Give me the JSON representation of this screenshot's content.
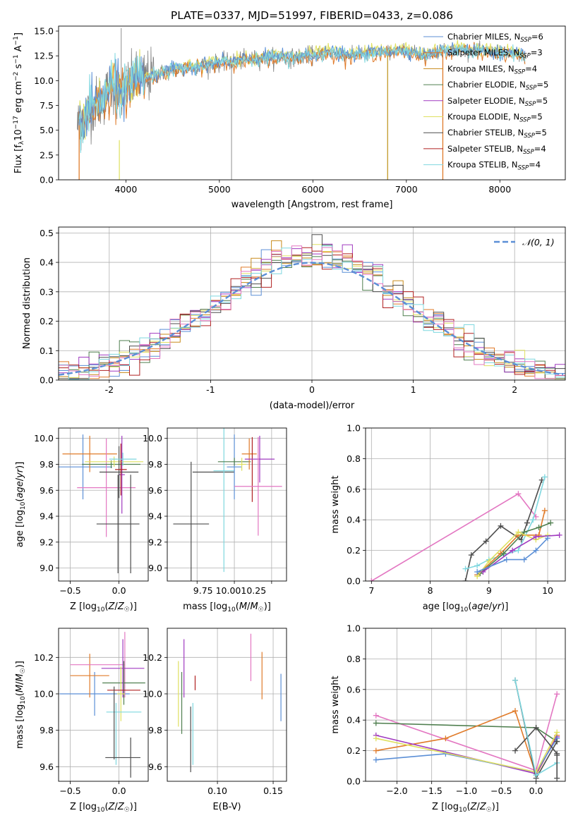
{
  "title": "PLATE=0337, MJD=51997, FIBERID=0433, z=0.086",
  "colors": {
    "Chabrier MILES": "#5b8fd6",
    "Salpeter MILES": "#e07b2a",
    "Kroupa MILES": "#c88a1a",
    "Chabrier ELODIE": "#4f7f4f",
    "Salpeter ELODIE": "#a03ac0",
    "Kroupa ELODIE": "#dfe060",
    "Chabrier STELIB": "#4d4d4d",
    "Salpeter STELIB": "#b02020",
    "Kroupa STELIB": "#7fd7df",
    "extra_pink": "#e377c2",
    "gauss": "#5b8fd6",
    "grid": "#b0b0b0"
  },
  "chart_data": [
    {
      "id": "spectrum",
      "type": "line",
      "title": "PLATE=0337, MJD=51997, FIBERID=0433, z=0.086",
      "xlabel": "wavelength [Angstrom, rest frame]",
      "ylabel": "Flux [f_λ 10^-17 erg cm^-2 s^-1 A^-1]",
      "xlim": [
        3280,
        8700
      ],
      "ylim": [
        0,
        15.5
      ],
      "xticks": [
        4000,
        5000,
        6000,
        7000,
        8000
      ],
      "yticks": [
        0.0,
        2.5,
        5.0,
        7.5,
        10.0,
        12.5,
        15.0
      ],
      "ytick_labels": [
        "0.0",
        "2.5",
        "5.0",
        "7.5",
        "10.0",
        "12.5",
        "15.0"
      ],
      "grid": false,
      "legend_position": "right",
      "legend": [
        {
          "label": "Chabrier MILES, N",
          "sub": "SSP",
          "n": "=6"
        },
        {
          "label": "Salpeter MILES, N",
          "sub": "SSP",
          "n": "=3"
        },
        {
          "label": "Kroupa MILES, N",
          "sub": "SSP",
          "n": "=4"
        },
        {
          "label": "Chabrier ELODIE, N",
          "sub": "SSP",
          "n": "=5"
        },
        {
          "label": "Salpeter ELODIE, N",
          "sub": "SSP",
          "n": "=5"
        },
        {
          "label": "Kroupa ELODIE, N",
          "sub": "SSP",
          "n": "=5"
        },
        {
          "label": "Chabrier STELIB, N",
          "sub": "SSP",
          "n": "=5"
        },
        {
          "label": "Salpeter STELIB, N",
          "sub": "SSP",
          "n": "=4"
        },
        {
          "label": "Kroupa STELIB, N",
          "sub": "SSP",
          "n": "=4"
        }
      ],
      "data": {
        "x": [
          3480,
          3550,
          3650,
          3750,
          3850,
          3950,
          4050,
          4150,
          4300,
          4450,
          4600,
          4800,
          5000,
          5200,
          5400,
          5600,
          5800,
          6000,
          6200,
          6400,
          6600,
          6800,
          7000,
          7200,
          7400,
          7600,
          7800,
          8000,
          8200,
          8280
        ],
        "y": [
          5.5,
          6.0,
          7.5,
          8.0,
          9.5,
          8.5,
          9.8,
          10.2,
          10.5,
          11.0,
          11.2,
          11.5,
          11.8,
          12.0,
          12.2,
          12.4,
          12.3,
          12.6,
          12.8,
          12.5,
          12.8,
          12.9,
          13.0,
          12.6,
          13.0,
          13.2,
          13.0,
          12.8,
          12.6,
          12.4
        ],
        "noise_sigma_blue": 2.5,
        "noise_sigma_red": 1.0,
        "spikes": [
          {
            "x": 3950,
            "y": 15.3
          },
          {
            "x": 5130,
            "y": 0.0
          },
          {
            "x": 6800,
            "y": 0.0
          },
          {
            "x": 7390,
            "y": 0.0
          }
        ]
      }
    },
    {
      "id": "residuals",
      "type": "histogram",
      "xlabel": "(data-model)/error",
      "ylabel": "Normed distribution",
      "xlim": [
        -2.5,
        2.5
      ],
      "ylim": [
        0,
        0.52
      ],
      "xticks": [
        -2,
        -1,
        0,
        1,
        2
      ],
      "yticks": [
        0.0,
        0.1,
        0.2,
        0.3,
        0.4,
        0.5
      ],
      "ytick_labels": [
        "0.0",
        "0.1",
        "0.2",
        "0.3",
        "0.4",
        "0.5"
      ],
      "grid": true,
      "legend_position": "top-right",
      "legend": "N(0, 1)",
      "bin_width": 0.1,
      "gaussian": {
        "mean": 0,
        "sigma": 1
      }
    },
    {
      "id": "age_vs_Z",
      "type": "errorbar",
      "xlabel": "Z [log10(Z/Z⊙)]",
      "ylabel": "age [log10(age/yr)]",
      "xlim": [
        -0.62,
        0.3
      ],
      "ylim": [
        8.9,
        10.08
      ],
      "xticks": [
        -0.5,
        0.0
      ],
      "xtick_labels": [
        "−0.5",
        "0.0"
      ],
      "yticks": [
        9.0,
        9.2,
        9.4,
        9.6,
        9.8,
        10.0
      ],
      "ytick_labels": [
        "9.0",
        "9.2",
        "9.4",
        "9.6",
        "9.8",
        "10.0"
      ],
      "grid": true,
      "points": [
        {
          "series": "Chabrier MILES",
          "x": -0.37,
          "y": 9.78,
          "xe": 0.3,
          "ye": 0.25
        },
        {
          "series": "Salpeter MILES",
          "x": -0.3,
          "y": 9.88,
          "xe": 0.28,
          "ye": 0.14
        },
        {
          "series": "extra_pink",
          "x": -0.13,
          "y": 9.62,
          "xe": 0.3,
          "ye": 0.38
        },
        {
          "series": "Salpeter ELODIE",
          "x": 0.03,
          "y": 9.72,
          "xe": 0.03,
          "ye": 0.3
        },
        {
          "series": "Chabrier ELODIE",
          "x": -0.08,
          "y": 9.8,
          "xe": 0.3,
          "ye": 0.03
        },
        {
          "series": "Kroupa ELODIE",
          "x": -0.05,
          "y": 9.82,
          "xe": 0.3,
          "ye": 0.04
        },
        {
          "series": "Chabrier STELIB",
          "x": 0.0,
          "y": 9.74,
          "xe": 0.2,
          "ye": 0.2
        },
        {
          "series": "Chabrier STELIB",
          "x": -0.01,
          "y": 9.34,
          "xe": 0.22,
          "ye": 0.38
        },
        {
          "series": "Chabrier STELIB",
          "x": 0.12,
          "y": 9.34,
          "xe": 0.0,
          "ye": 0.38
        },
        {
          "series": "Salpeter STELIB",
          "x": 0.02,
          "y": 9.76,
          "xe": 0.06,
          "ye": 0.2
        },
        {
          "series": "Kroupa STELIB",
          "x": 0.04,
          "y": 9.84,
          "xe": 0.14,
          "ye": 0.05
        }
      ]
    },
    {
      "id": "age_vs_mass",
      "type": "errorbar",
      "xlabel": "mass [log10(M/M⊙)]",
      "ylabel": "",
      "xlim": [
        9.55,
        10.35
      ],
      "ylim": [
        8.9,
        10.08
      ],
      "xticks": [
        9.75,
        10.0,
        10.25
      ],
      "xtick_labels": [
        "9.75",
        "10.00",
        "10.25"
      ],
      "xticks_overlap_label": "9.75 10.0010.25",
      "yticks": [
        9.0,
        9.2,
        9.4,
        9.6,
        9.8,
        10.0
      ],
      "ytick_labels": [
        "9.0",
        "9.2",
        "9.4",
        "9.6",
        "9.8",
        "10.0"
      ],
      "grid": true,
      "points": [
        {
          "series": "Chabrier STELIB",
          "x": 9.71,
          "y": 9.34,
          "xe": 0.12,
          "ye": 0.48
        },
        {
          "series": "Chabrier STELIB",
          "x": 9.86,
          "y": 9.74,
          "xe": 0.14,
          "ye": 0.0
        },
        {
          "series": "Kroupa STELIB",
          "x": 9.93,
          "y": 9.75,
          "xe": 0.07,
          "ye": 0.78
        },
        {
          "series": "Chabrier MILES",
          "x": 10.0,
          "y": 9.78,
          "xe": 0.05,
          "ye": 0.25
        },
        {
          "series": "Chabrier ELODIE",
          "x": 10.0,
          "y": 9.82,
          "xe": 0.11,
          "ye": 0.03
        },
        {
          "series": "Kroupa ELODIE",
          "x": 10.05,
          "y": 9.8,
          "xe": 0.03,
          "ye": 0.05
        },
        {
          "series": "Salpeter MILES",
          "x": 10.1,
          "y": 9.88,
          "xe": 0.05,
          "ye": 0.12
        },
        {
          "series": "Salpeter STELIB",
          "x": 10.12,
          "y": 9.76,
          "xe": 0.0,
          "ye": 0.25
        },
        {
          "series": "Salpeter ELODIE",
          "x": 10.17,
          "y": 9.84,
          "xe": 0.1,
          "ye": 0.18
        },
        {
          "series": "extra_pink",
          "x": 10.16,
          "y": 9.63,
          "xe": 0.16,
          "ye": 0.38
        }
      ]
    },
    {
      "id": "massweight_vs_age",
      "type": "line",
      "xlabel": "age [log10(age/yr)]",
      "ylabel": "mass weight",
      "xlim": [
        6.9,
        10.3
      ],
      "ylim": [
        0,
        1.0
      ],
      "xticks": [
        7,
        8,
        9,
        10
      ],
      "yticks": [
        0.0,
        0.2,
        0.4,
        0.6,
        0.8,
        1.0
      ],
      "ytick_labels": [
        "0.0",
        "0.2",
        "0.4",
        "0.6",
        "0.8",
        "1.0"
      ],
      "grid": true,
      "series": [
        {
          "name": "extra_pink",
          "x": [
            7.0,
            9.5,
            9.8
          ],
          "y": [
            0.0,
            0.57,
            0.42
          ]
        },
        {
          "name": "Chabrier STELIB",
          "x": [
            8.6,
            8.7,
            8.95,
            9.2,
            9.55,
            9.65,
            9.9
          ],
          "y": [
            0.0,
            0.17,
            0.26,
            0.36,
            0.27,
            0.38,
            0.66
          ]
        },
        {
          "name": "Kroupa STELIB",
          "x": [
            8.6,
            8.8,
            9.0,
            9.5,
            9.75,
            9.95
          ],
          "y": [
            0.08,
            0.1,
            0.14,
            0.2,
            0.4,
            0.68
          ]
        },
        {
          "name": "Salpeter MILES",
          "x": [
            8.8,
            9.2,
            9.5,
            9.85,
            9.95
          ],
          "y": [
            0.04,
            0.18,
            0.3,
            0.3,
            0.46
          ]
        },
        {
          "name": "Chabrier ELODIE",
          "x": [
            8.85,
            9.25,
            9.6,
            9.85,
            10.05
          ],
          "y": [
            0.05,
            0.18,
            0.32,
            0.35,
            0.38
          ]
        },
        {
          "name": "Kroupa ELODIE",
          "x": [
            8.8,
            9.0,
            9.5,
            9.8,
            10.0
          ],
          "y": [
            0.03,
            0.13,
            0.32,
            0.27,
            0.3
          ]
        },
        {
          "name": "Salpeter ELODIE",
          "x": [
            8.9,
            9.4,
            9.8,
            10.2
          ],
          "y": [
            0.06,
            0.2,
            0.29,
            0.3
          ]
        },
        {
          "name": "Chabrier MILES",
          "x": [
            8.8,
            9.3,
            9.6,
            9.8,
            10.0
          ],
          "y": [
            0.06,
            0.14,
            0.14,
            0.2,
            0.28
          ]
        }
      ]
    },
    {
      "id": "mass_vs_Z",
      "type": "errorbar",
      "xlabel": "Z [log10(Z/Z⊙)]",
      "ylabel": "mass [log10(M/M⊙)]",
      "xlim": [
        -0.62,
        0.3
      ],
      "ylim": [
        9.52,
        10.36
      ],
      "xticks": [
        -0.5,
        0.0
      ],
      "xtick_labels": [
        "−0.5",
        "0.0"
      ],
      "yticks": [
        9.6,
        9.8,
        10.0,
        10.2
      ],
      "ytick_labels": [
        "9.6",
        "9.8",
        "10.0",
        "10.2"
      ],
      "grid": true,
      "points": [
        {
          "series": "Chabrier MILES",
          "x": -0.25,
          "y": 10.0,
          "xe": 0.36,
          "ye": 0.12
        },
        {
          "series": "Salpeter MILES",
          "x": -0.3,
          "y": 10.1,
          "xe": 0.2,
          "ye": 0.12
        },
        {
          "series": "extra_pink",
          "x": -0.22,
          "y": 10.16,
          "xe": 0.28,
          "ye": 0.0
        },
        {
          "series": "extra_pink",
          "x": 0.06,
          "y": 10.16,
          "xe": 0.0,
          "ye": 0.18
        },
        {
          "series": "Chabrier ELODIE",
          "x": 0.05,
          "y": 10.06,
          "xe": 0.22,
          "ye": 0.12
        },
        {
          "series": "Salpeter ELODIE",
          "x": 0.04,
          "y": 10.14,
          "xe": 0.22,
          "ye": 0.16
        },
        {
          "series": "Kroupa ELODIE",
          "x": 0.02,
          "y": 10.0,
          "xe": 0.04,
          "ye": 0.15
        },
        {
          "series": "Salpeter STELIB",
          "x": 0.05,
          "y": 10.02,
          "xe": 0.17,
          "ye": 0.0
        },
        {
          "series": "Kroupa STELIB",
          "x": 0.05,
          "y": 9.9,
          "xe": 0.18,
          "ye": 0.0
        },
        {
          "series": "Kroupa STELIB",
          "x": -0.03,
          "y": 9.78,
          "xe": 0.0,
          "ye": 0.17
        },
        {
          "series": "Chabrier STELIB",
          "x": -0.05,
          "y": 9.84,
          "xe": 0.0,
          "ye": 0.2
        },
        {
          "series": "Chabrier STELIB",
          "x": 0.04,
          "y": 9.65,
          "xe": 0.18,
          "ye": 0.0
        },
        {
          "series": "Chabrier STELIB",
          "x": 0.12,
          "y": 9.65,
          "xe": 0.0,
          "ye": 0.11
        }
      ]
    },
    {
      "id": "mass_vs_ebv",
      "type": "errorbar",
      "xlabel": "E(B-V)",
      "ylabel": "",
      "xlim": [
        0.055,
        0.162
      ],
      "ylim": [
        9.52,
        10.36
      ],
      "xticks": [
        0.1,
        0.15
      ],
      "xtick_labels": [
        "0.10",
        "0.15"
      ],
      "yticks": [
        9.6,
        9.8,
        10.0,
        10.2
      ],
      "ytick_labels": [
        "9.6",
        "9.8",
        "10.0",
        "10.2"
      ],
      "grid": true,
      "points": [
        {
          "series": "Kroupa ELODIE",
          "x": 0.065,
          "y": 10.0,
          "xe": 0.0,
          "ye": 0.18
        },
        {
          "series": "Chabrier ELODIE",
          "x": 0.068,
          "y": 9.95,
          "xe": 0.0,
          "ye": 0.17
        },
        {
          "series": "Salpeter ELODIE",
          "x": 0.07,
          "y": 10.14,
          "xe": 0.0,
          "ye": 0.16
        },
        {
          "series": "Chabrier STELIB",
          "x": 0.076,
          "y": 9.75,
          "xe": 0.0,
          "ye": 0.18
        },
        {
          "series": "Kroupa STELIB",
          "x": 0.078,
          "y": 9.78,
          "xe": 0.0,
          "ye": 0.17
        },
        {
          "series": "Salpeter STELIB",
          "x": 0.08,
          "y": 10.06,
          "xe": 0.0,
          "ye": 0.04
        },
        {
          "series": "extra_pink",
          "x": 0.13,
          "y": 10.2,
          "xe": 0.0,
          "ye": 0.13
        },
        {
          "series": "Salpeter MILES",
          "x": 0.14,
          "y": 10.1,
          "xe": 0.0,
          "ye": 0.13
        },
        {
          "series": "Chabrier MILES",
          "x": 0.157,
          "y": 9.98,
          "xe": 0.0,
          "ye": 0.13
        }
      ]
    },
    {
      "id": "massweight_vs_Z",
      "type": "line",
      "xlabel": "Z [log10(Z/Z⊙)]",
      "ylabel": "mass weight",
      "xlim": [
        -2.45,
        0.42
      ],
      "ylim": [
        0,
        1.0
      ],
      "xticks": [
        -2.0,
        -1.5,
        -1.0,
        -0.5,
        0.0
      ],
      "xtick_labels": [
        "−2.0",
        "−1.5",
        "−1.0",
        "−0.5",
        "0.0"
      ],
      "yticks": [
        0.0,
        0.2,
        0.4,
        0.6,
        0.8,
        1.0
      ],
      "ytick_labels": [
        "0.0",
        "0.2",
        "0.4",
        "0.6",
        "0.8",
        "1.0"
      ],
      "grid": true,
      "series": [
        {
          "name": "extra_pink",
          "x": [
            -2.3,
            0.0,
            0.3
          ],
          "y": [
            0.43,
            0.07,
            0.57
          ]
        },
        {
          "name": "Chabrier ELODIE",
          "x": [
            -2.3,
            0.0,
            0.3
          ],
          "y": [
            0.38,
            0.35,
            0.26
          ]
        },
        {
          "name": "Salpeter MILES",
          "x": [
            -2.3,
            -1.3,
            -0.3,
            0.0,
            0.3
          ],
          "y": [
            0.2,
            0.28,
            0.46,
            0.04,
            0.3
          ]
        },
        {
          "name": "Salpeter ELODIE",
          "x": [
            -2.3,
            0.0,
            0.3
          ],
          "y": [
            0.3,
            0.05,
            0.29
          ]
        },
        {
          "name": "Chabrier MILES",
          "x": [
            -2.3,
            -1.3,
            0.0,
            0.3
          ],
          "y": [
            0.14,
            0.18,
            0.06,
            0.28
          ]
        },
        {
          "name": "Kroupa ELODIE",
          "x": [
            -2.3,
            0.0,
            0.3
          ],
          "y": [
            0.28,
            0.06,
            0.32
          ]
        },
        {
          "name": "Chabrier STELIB",
          "x": [
            -0.3,
            0.0,
            0.3
          ],
          "y": [
            0.66,
            0.02,
            0.26
          ]
        },
        {
          "name": "Chabrier STELIB",
          "x": [
            -0.3,
            0.0,
            0.3
          ],
          "y": [
            0.2,
            0.35,
            0.18
          ]
        },
        {
          "name": "Kroupa STELIB",
          "x": [
            -0.3,
            0.0,
            0.3
          ],
          "y": [
            0.66,
            0.04,
            0.12
          ]
        },
        {
          "name": "Chabrier STELIB",
          "x": [
            0.3,
            0.3
          ],
          "y": [
            0.02,
            0.17
          ]
        }
      ]
    }
  ]
}
